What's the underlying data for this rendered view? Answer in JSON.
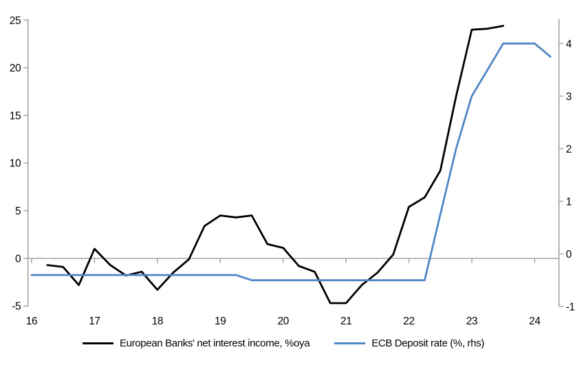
{
  "chart_data": {
    "type": "line",
    "title": "",
    "x_axis": {
      "ticks": [
        16,
        17,
        18,
        19,
        20,
        21,
        22,
        23,
        24
      ],
      "range": [
        16,
        24.4
      ],
      "unit": "year"
    },
    "left_axis": {
      "ticks": [
        25,
        20,
        15,
        10,
        5,
        0,
        -5
      ],
      "range": [
        -5,
        25
      ]
    },
    "right_axis": {
      "ticks": [
        4,
        3,
        2,
        1,
        0,
        -1
      ],
      "range": [
        -1,
        4.45
      ]
    },
    "grid": false,
    "legend_position": "bottom",
    "background": "#ffffff",
    "axis_color": "#a6a6a6",
    "series": [
      {
        "name": "European Banks' net interest income, %oya",
        "color": "#000000",
        "axis": "left",
        "x": [
          16.25,
          16.5,
          16.75,
          17.0,
          17.25,
          17.5,
          17.75,
          18.0,
          18.25,
          18.5,
          18.75,
          19.0,
          19.25,
          19.5,
          19.75,
          20.0,
          20.25,
          20.5,
          20.75,
          21.0,
          21.25,
          21.5,
          21.75,
          22.0,
          22.25,
          22.5,
          22.75,
          23.0,
          23.25,
          23.5
        ],
        "values": [
          -0.7,
          -0.9,
          -2.8,
          1.0,
          -0.7,
          -1.8,
          -1.4,
          -3.3,
          -1.5,
          -0.1,
          3.4,
          4.5,
          4.3,
          4.5,
          1.5,
          1.1,
          -0.8,
          -1.4,
          -4.7,
          -4.7,
          -2.8,
          -1.5,
          0.4,
          5.4,
          6.4,
          9.2,
          17.0,
          24.0,
          24.1,
          24.4
        ]
      },
      {
        "name": "ECB Deposit rate (%, rhs)",
        "color": "#4e86c4",
        "axis": "right",
        "x": [
          16.0,
          16.25,
          16.5,
          16.75,
          17.0,
          17.25,
          17.5,
          17.75,
          18.0,
          18.25,
          18.5,
          18.75,
          19.0,
          19.25,
          19.5,
          19.75,
          20.0,
          20.25,
          20.5,
          20.75,
          21.0,
          21.25,
          21.5,
          21.75,
          22.0,
          22.25,
          22.5,
          22.75,
          23.0,
          23.25,
          23.5,
          23.75,
          24.0,
          24.25
        ],
        "values": [
          -0.4,
          -0.4,
          -0.4,
          -0.4,
          -0.4,
          -0.4,
          -0.4,
          -0.4,
          -0.4,
          -0.4,
          -0.4,
          -0.4,
          -0.4,
          -0.4,
          -0.5,
          -0.5,
          -0.5,
          -0.5,
          -0.5,
          -0.5,
          -0.5,
          -0.5,
          -0.5,
          -0.5,
          -0.5,
          -0.5,
          0.75,
          2.0,
          3.0,
          3.5,
          4.0,
          4.0,
          4.0,
          3.75
        ]
      }
    ]
  }
}
